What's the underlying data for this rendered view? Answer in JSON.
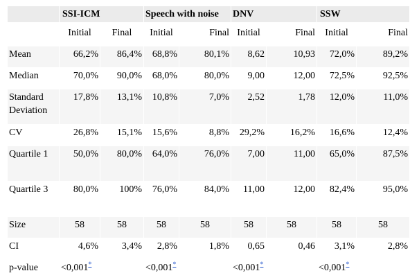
{
  "groups": [
    "SSI-ICM",
    "Speech with noise",
    "DNV",
    "SSW"
  ],
  "subheaders": [
    "Initial",
    "Final"
  ],
  "rows": [
    {
      "label": "Mean",
      "values": [
        "66,2%",
        "86,4%",
        "68,8%",
        "80,1%",
        "8,62",
        "10,93",
        "72,0%",
        "89,2%"
      ]
    },
    {
      "label": "Median",
      "values": [
        "70,0%",
        "90,0%",
        "68,0%",
        "80,0%",
        "9,00",
        "12,00",
        "72,5%",
        "92,5%"
      ]
    },
    {
      "label": "Standard Deviation",
      "values": [
        "17,8%",
        "13,1%",
        "10,8%",
        "7,0%",
        "2,52",
        "1,78",
        "12,0%",
        "11,0%"
      ]
    },
    {
      "label": "CV",
      "values": [
        "26,8%",
        "15,1%",
        "15,6%",
        "8,8%",
        "29,2%",
        "16,2%",
        "16,6%",
        "12,4%"
      ]
    },
    {
      "label": "Quartile 1",
      "values": [
        "50,0%",
        "80,0%",
        "64,0%",
        "76,0%",
        "7,00",
        "11,00",
        "65,0%",
        "87,5%"
      ]
    },
    {
      "label": "Quartile 3",
      "values": [
        "80,0%",
        "100%",
        "76,0%",
        "84,0%",
        "11,00",
        "12,00",
        "82,4%",
        "95,0%"
      ]
    },
    {
      "label": "Size",
      "values": [
        "58",
        "58",
        "58",
        "58",
        "58",
        "58",
        "58",
        "58"
      ]
    },
    {
      "label": "CI",
      "values": [
        "4,6%",
        "3,4%",
        "2,8%",
        "1,8%",
        "0,65",
        "0,46",
        "3,1%",
        "2,8%"
      ]
    }
  ],
  "pvalue": {
    "label": "p-value",
    "values": [
      "<0,001",
      "<0,001",
      "<0,001",
      "<0,001"
    ],
    "marker": "*"
  }
}
